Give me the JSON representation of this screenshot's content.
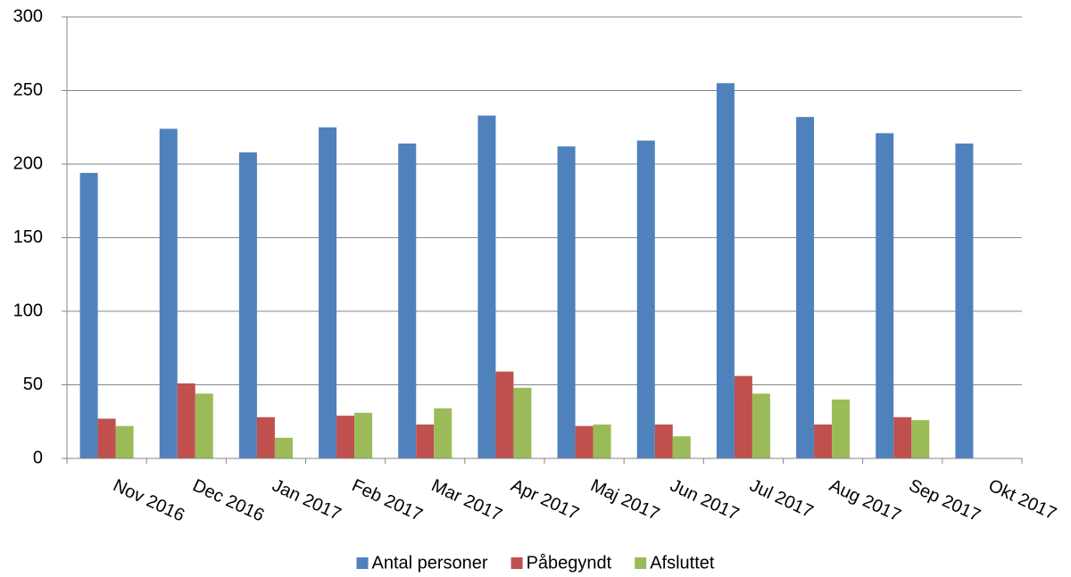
{
  "chart_data": {
    "type": "bar",
    "categories": [
      "Nov 2016",
      "Dec 2016",
      "Jan 2017",
      "Feb 2017",
      "Mar 2017",
      "Apr 2017",
      "Maj 2017",
      "Jun 2017",
      "Jul 2017",
      "Aug 2017",
      "Sep 2017",
      "Okt 2017"
    ],
    "series": [
      {
        "name": "Antal personer",
        "color": "#4f81bd",
        "values": [
          194,
          224,
          208,
          225,
          214,
          233,
          212,
          216,
          255,
          232,
          221,
          214
        ]
      },
      {
        "name": "Påbegyndt",
        "color": "#c0504d",
        "values": [
          27,
          51,
          28,
          29,
          23,
          59,
          22,
          23,
          56,
          23,
          28,
          null
        ]
      },
      {
        "name": "Afsluttet",
        "color": "#9bbb59",
        "values": [
          22,
          44,
          14,
          31,
          34,
          48,
          23,
          15,
          44,
          40,
          26,
          null
        ]
      }
    ],
    "ylim": [
      0,
      300
    ],
    "yticks": [
      0,
      50,
      100,
      150,
      200,
      250,
      300
    ],
    "grid": true,
    "legend": "bottom"
  }
}
